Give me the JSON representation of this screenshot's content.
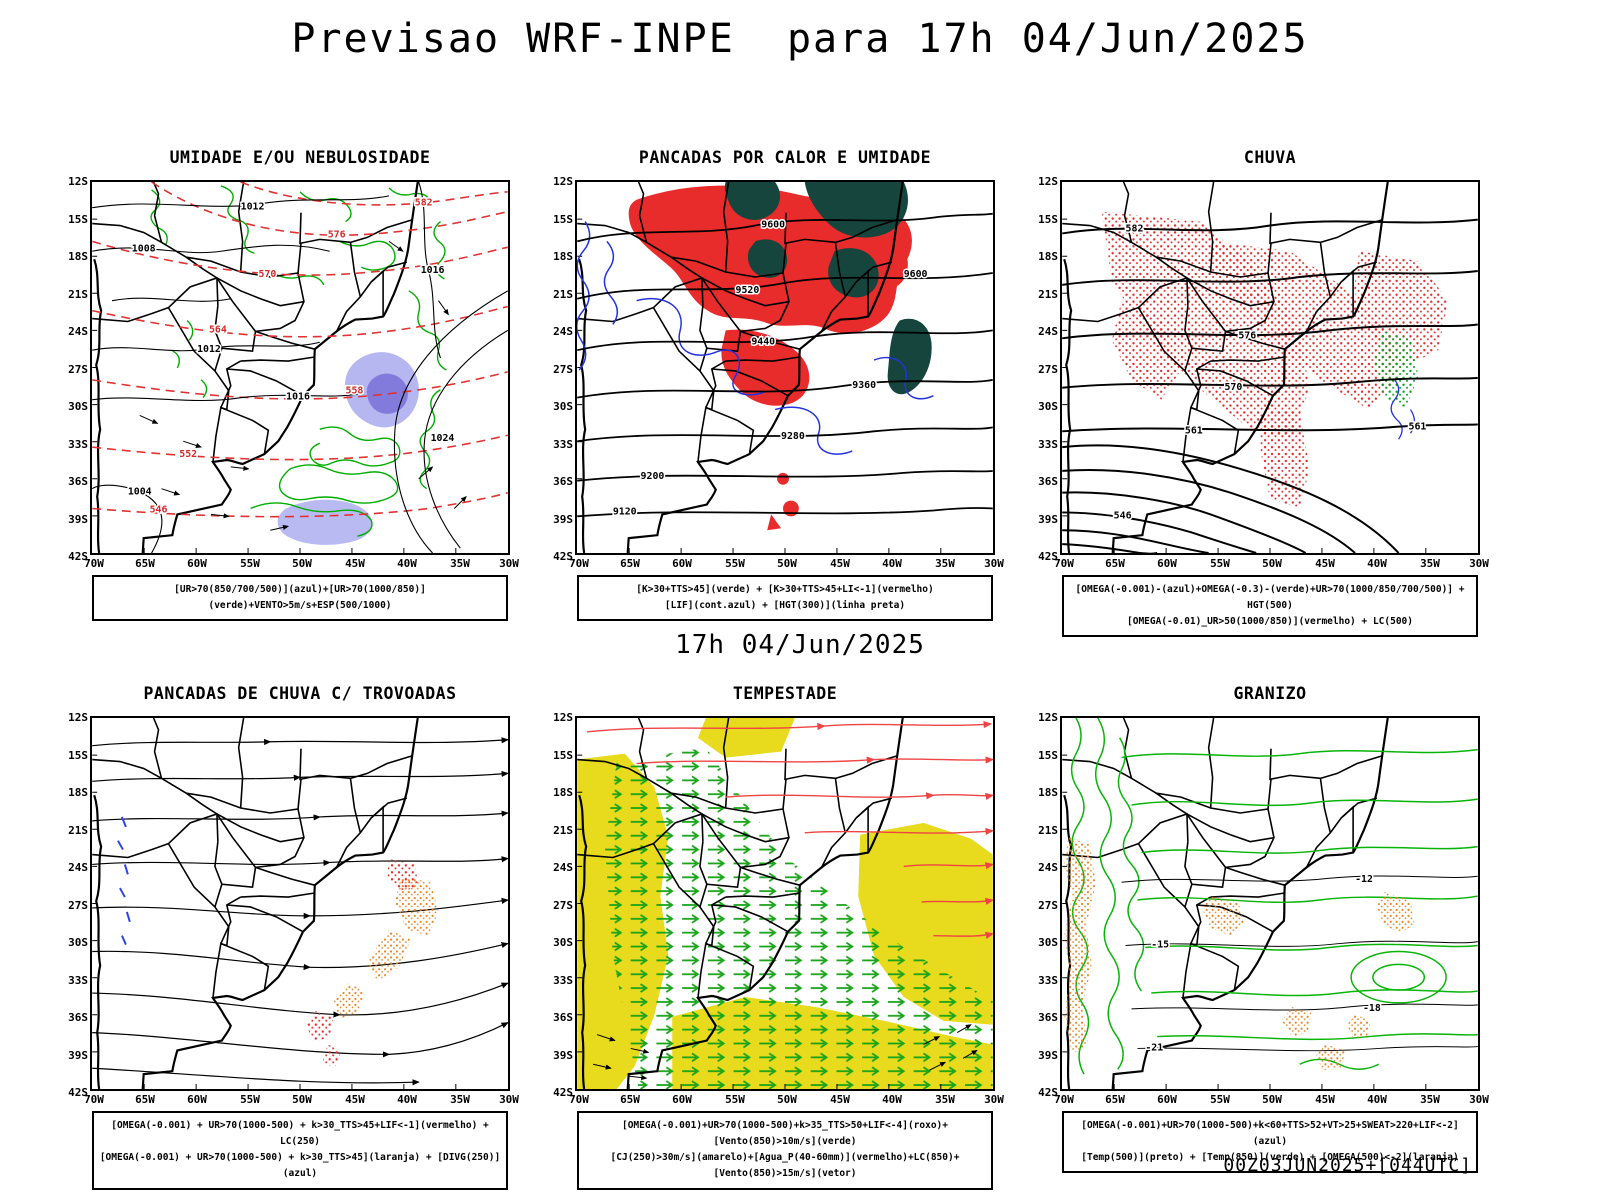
{
  "page": {
    "title": "Previsao WRF-INPE  para 17h 04/Jun/2025",
    "subtitle": "17h 04/Jun/2025",
    "footer": "00Z03JUN2025+[044UTC]"
  },
  "colors": {
    "green": "#00ad00",
    "red": "#e22b2b",
    "dark_teal": "#15453c",
    "blue": "#2433dd",
    "humidity_shade_light": "#a9a9ef",
    "humidity_shade_dark": "#7d74d8",
    "yellow": "#e8da1c",
    "orange": "#e8821e",
    "black": "#000000"
  },
  "axes": {
    "lat_ticks": [
      "12S",
      "15S",
      "18S",
      "21S",
      "24S",
      "27S",
      "30S",
      "33S",
      "36S",
      "39S",
      "42S"
    ],
    "lon_ticks": [
      "70W",
      "65W",
      "60W",
      "55W",
      "50W",
      "45W",
      "40W",
      "35W",
      "30W"
    ]
  },
  "panels": [
    {
      "title": "UMIDADE E/OU NEBULOSIDADE",
      "caption_lines": [
        "[UR>70(850/700/500)](azul)+[UR>70(1000/850)](verde)+VENTO>5m/s+ESP(500/1000)"
      ],
      "contour_labels": [
        "1012",
        "1016",
        "1008",
        "1012",
        "1016",
        "1024",
        "1004",
        "582",
        "576",
        "570",
        "564",
        "558",
        "552",
        "546"
      ]
    },
    {
      "title": "PANCADAS POR CALOR E UMIDADE",
      "caption_lines": [
        "[K>30+TTS>45](verde) + [K>30+TTS>45+LI<-1](vermelho)",
        "[LIF](cont.azul) + [HGT(300)](linha preta)"
      ],
      "contour_labels": [
        "9600",
        "9600",
        "9520",
        "9440",
        "9360",
        "9280",
        "9200",
        "9120"
      ]
    },
    {
      "title": "CHUVA",
      "caption_lines": [
        "[OMEGA(-0.001)-(azul)+OMEGA(-0.3)-(verde)+UR>70(1000/850/700/500)] + HGT(500)",
        "[OMEGA(-0.01)_UR>50(1000/850)](vermelho) + LC(500)"
      ],
      "contour_labels": [
        "582",
        "576",
        "570",
        "561",
        "546",
        "561"
      ]
    },
    {
      "title": "PANCADAS DE CHUVA C/ TROVOADAS",
      "caption_lines": [
        "[OMEGA(-0.001) + UR>70(1000-500) + k>30_TTS>45+LIF<-1](vermelho) + LC(250)",
        "[OMEGA(-0.001) + UR>70(1000-500) + k>30_TTS>45](laranja) + [DIVG(250)](azul)"
      ],
      "contour_labels": []
    },
    {
      "title": "TEMPESTADE",
      "caption_lines": [
        "[OMEGA(-0.001)+UR>70(1000-500)+k>35_TTS>50+LIF<-4](roxo)+[Vento(850)>10m/s](verde)",
        "[CJ(250)>30m/s](amarelo)+[Agua_P(40-60mm)](vermelho)+LC(850)+[Vento(850)>15m/s](vetor)"
      ],
      "contour_labels": []
    },
    {
      "title": "GRANIZO",
      "caption_lines": [
        "[OMEGA(-0.001)+UR>70(1000-500)+k<60+TTS>52+VT>25+SWEAT>220+LIF<-2](azul)",
        "[Temp(500)](preto) + [Temp(850)](verde) + [OMEGA(500)<-2](laranja)"
      ],
      "contour_labels": [
        "-12",
        "-15",
        "-18",
        "-21"
      ]
    }
  ]
}
